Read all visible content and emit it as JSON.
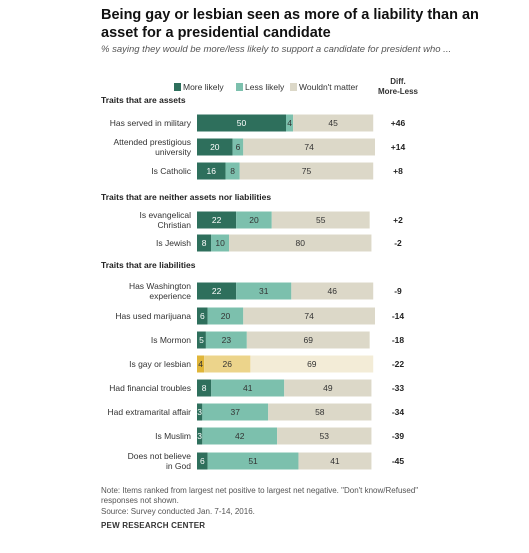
{
  "title": "Being gay or lesbian seen as more of a liability than an asset for a presidential candidate",
  "subtitle": "% saying they would be more/less likely to support a candidate for president who ...",
  "note_line1": "Note: Items ranked from largest net positive to largest net negative. \"Don't know/Refused\"",
  "note_line2": "responses not shown.",
  "source": "Source: Survey conducted Jan. 7-14, 2016.",
  "footer": "PEW RESEARCH CENTER",
  "colors": {
    "more": "#2e6f5c",
    "less": "#7cc0ad",
    "wouldnt": "#dcd8c8",
    "highlight_more": "#e0b63a",
    "highlight_less": "#ecd48b",
    "highlight_wouldnt": "#f3ecd7"
  },
  "chart_data": {
    "type": "bar",
    "stacked": true,
    "orientation": "horizontal",
    "legend": [
      "More likely",
      "Less likely",
      "Wouldn't matter"
    ],
    "legend_placement": "top",
    "diff_header": [
      "Diff.",
      "More-Less"
    ],
    "groups": [
      {
        "label": "Traits that are assets",
        "items": [
          {
            "label": [
              "Has served in military"
            ],
            "more": 50,
            "less": 4,
            "wouldnt": 45,
            "diff": "+46"
          },
          {
            "label": [
              "Attended prestigious",
              "university"
            ],
            "more": 20,
            "less": 6,
            "wouldnt": 74,
            "diff": "+14"
          },
          {
            "label": [
              "Is Catholic"
            ],
            "more": 16,
            "less": 8,
            "wouldnt": 75,
            "diff": "+8"
          }
        ]
      },
      {
        "label": "Traits that are neither assets nor liabilities",
        "items": [
          {
            "label": [
              "Is evangelical",
              "Christian"
            ],
            "more": 22,
            "less": 20,
            "wouldnt": 55,
            "diff": "+2"
          },
          {
            "label": [
              "Is Jewish"
            ],
            "more": 8,
            "less": 10,
            "wouldnt": 80,
            "diff": "-2"
          }
        ]
      },
      {
        "label": "Traits that are liabilities",
        "items": [
          {
            "label": [
              "Has Washington",
              "experience"
            ],
            "more": 22,
            "less": 31,
            "wouldnt": 46,
            "diff": "-9"
          },
          {
            "label": [
              "Has used marijuana"
            ],
            "more": 6,
            "less": 20,
            "wouldnt": 74,
            "diff": "-14"
          },
          {
            "label": [
              "Is Mormon"
            ],
            "more": 5,
            "less": 23,
            "wouldnt": 69,
            "diff": "-18"
          },
          {
            "label": [
              "Is gay or lesbian"
            ],
            "more": 4,
            "less": 26,
            "wouldnt": 69,
            "diff": "-22",
            "highlight": true
          },
          {
            "label": [
              "Had financial troubles"
            ],
            "more": 8,
            "less": 41,
            "wouldnt": 49,
            "diff": "-33"
          },
          {
            "label": [
              "Had extramarital affair"
            ],
            "more": 3,
            "less": 37,
            "wouldnt": 58,
            "diff": "-34"
          },
          {
            "label": [
              "Is Muslim"
            ],
            "more": 3,
            "less": 42,
            "wouldnt": 53,
            "diff": "-39"
          },
          {
            "label": [
              "Does not believe",
              "in God"
            ],
            "more": 6,
            "less": 51,
            "wouldnt": 41,
            "diff": "-45"
          }
        ]
      }
    ]
  }
}
